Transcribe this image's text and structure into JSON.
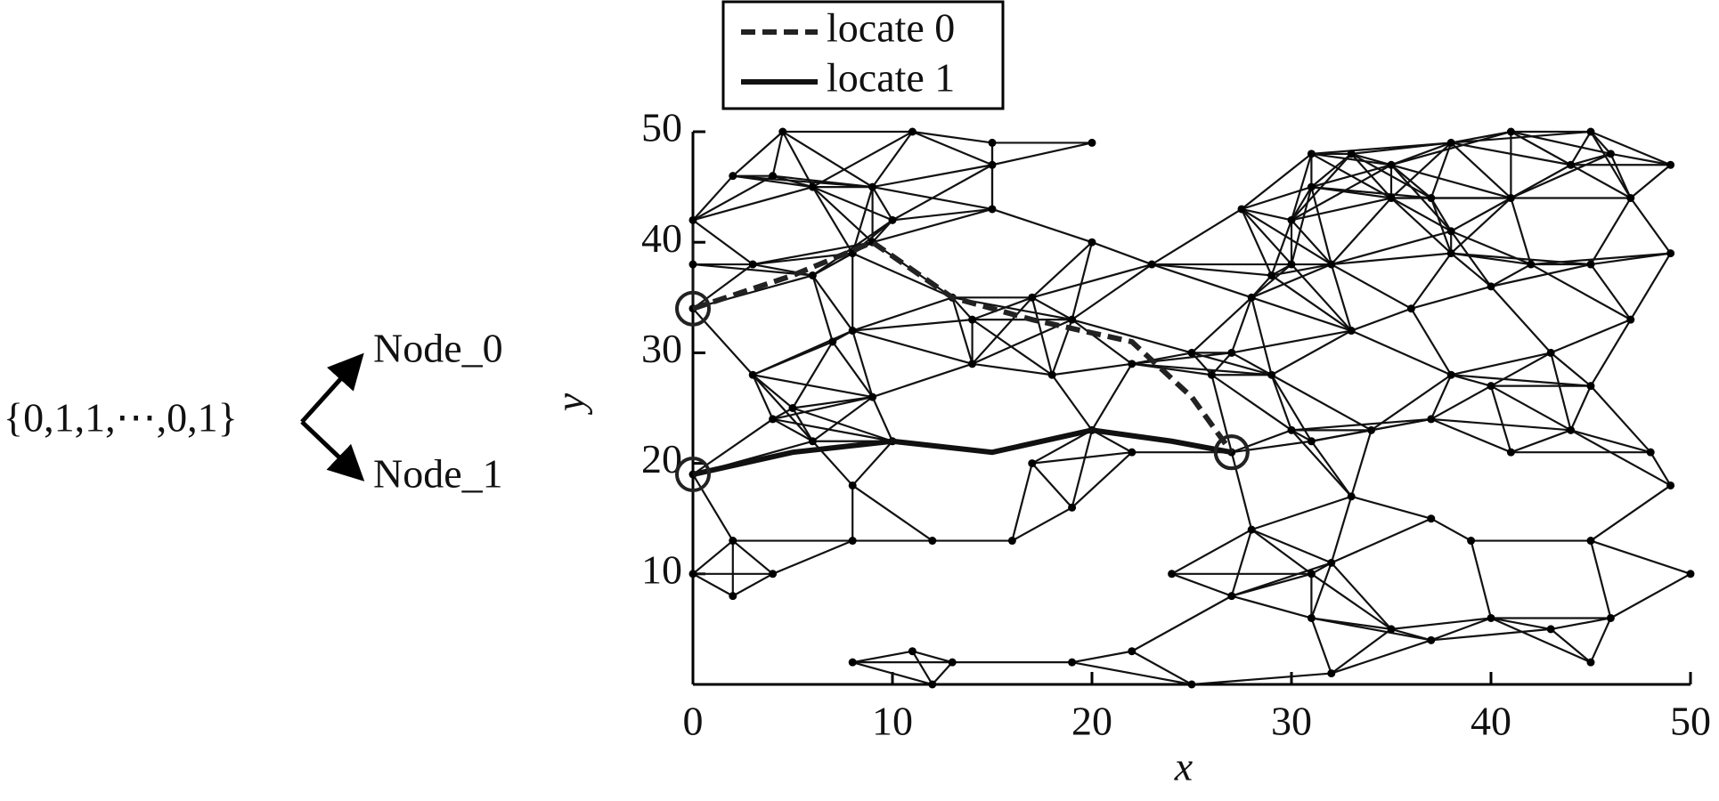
{
  "chart_data": {
    "type": "network",
    "encoding": "{0,1,1,⋯,0,1}",
    "branches": [
      "Node_0",
      "Node_1"
    ],
    "x_label": "x",
    "y_label": "y",
    "xlim": [
      0,
      50
    ],
    "ylim": [
      0,
      50
    ],
    "xticks": [
      0,
      10,
      20,
      30,
      40,
      50
    ],
    "yticks": [
      10,
      20,
      30,
      40,
      50
    ],
    "nodes": {
      "x": [
        0,
        0,
        0,
        0,
        0,
        2,
        4.5,
        4,
        6,
        9,
        11,
        15,
        15,
        15,
        20,
        3,
        6,
        9,
        10,
        8,
        13,
        20,
        17,
        23,
        19,
        3,
        5,
        4,
        7,
        8,
        14,
        9,
        6,
        8,
        10,
        17,
        20,
        22,
        19,
        16,
        12,
        8,
        2,
        2,
        4,
        8,
        11,
        12,
        13,
        19,
        22,
        25,
        24,
        27,
        31,
        32,
        35,
        37,
        40,
        43,
        45,
        46,
        50,
        33,
        37,
        39,
        45,
        49,
        41,
        48,
        44,
        37,
        34,
        30,
        31,
        27,
        28,
        31,
        32,
        29,
        27,
        26,
        25,
        28,
        29,
        30,
        33,
        36,
        40,
        43,
        47,
        45,
        38,
        40,
        38,
        42,
        45,
        49,
        35,
        38,
        41,
        44,
        47,
        49,
        46,
        41,
        45,
        38,
        31,
        33,
        35,
        37,
        31,
        27.5,
        30,
        32,
        22,
        18,
        14
      ],
      "y": [
        42,
        38,
        34,
        19,
        10,
        46,
        50,
        46,
        45,
        45,
        50,
        49,
        47,
        43,
        49,
        38,
        37,
        40,
        42,
        39,
        35,
        40,
        35,
        38,
        33,
        28,
        25,
        24,
        31,
        32,
        29,
        26,
        22,
        18,
        22,
        20,
        23,
        21,
        16,
        13,
        13,
        13,
        13,
        8,
        10,
        2,
        3,
        0,
        2,
        2,
        3,
        0,
        10,
        8,
        6,
        1,
        5,
        4,
        6,
        5,
        2,
        6,
        10,
        17,
        15,
        13,
        13,
        18,
        21,
        21,
        23,
        24,
        23,
        23,
        22,
        21,
        14,
        10,
        11,
        28,
        30,
        28,
        30,
        35,
        37,
        38,
        32,
        34,
        36,
        30,
        33,
        27,
        28,
        27,
        39,
        38,
        38,
        39,
        44,
        41,
        44,
        47,
        44,
        47,
        48,
        50,
        50,
        49,
        48,
        48,
        47,
        44,
        45,
        43,
        42,
        38,
        29,
        28,
        33
      ]
    },
    "series": [
      {
        "name": "locate 0",
        "color": "#222222",
        "dash": "dashed",
        "x": [
          0,
          5,
          9,
          13,
          17,
          22,
          25,
          27
        ],
        "y": [
          34,
          37,
          40,
          35,
          33,
          31,
          26,
          21
        ]
      },
      {
        "name": "locate 1",
        "color": "#111111",
        "dash": "solid",
        "x": [
          0,
          5,
          10,
          15,
          20,
          24,
          27
        ],
        "y": [
          19,
          21,
          22,
          21,
          23,
          22,
          21
        ]
      }
    ]
  }
}
